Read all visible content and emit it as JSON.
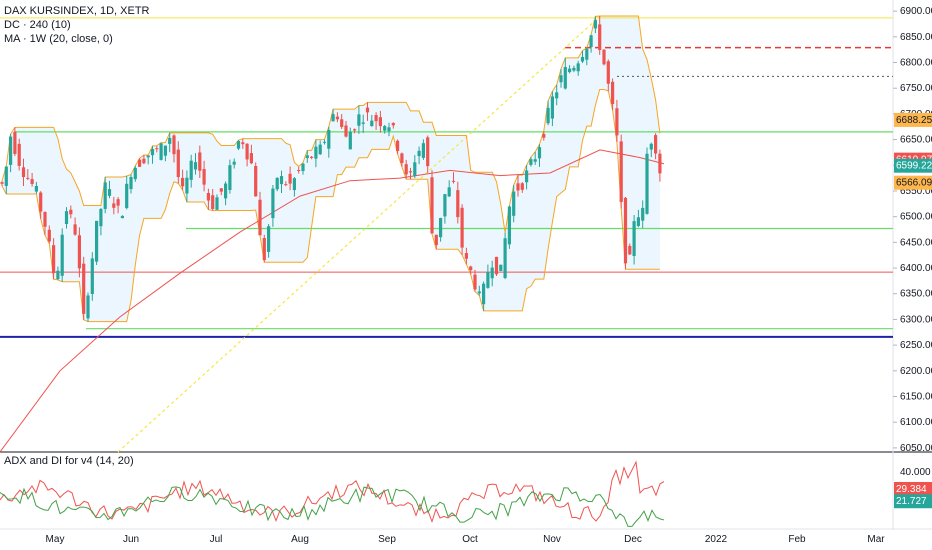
{
  "legend": {
    "symbol": "DAX KURSINDEX, 1D, XETR",
    "indicator1": "DC · 240 (10)",
    "indicator2": "MA · 1W (20, close, 0)",
    "adx_title": "ADX and DI for v4 (14, 20)"
  },
  "price_badges": {
    "b1": {
      "value": "6688.250",
      "bg": "#ffb74d",
      "fg": "#131722"
    },
    "b2": {
      "value": "6610.971",
      "bg": "#ef5350",
      "fg": "#ffffff"
    },
    "b3": {
      "value": "6599.220",
      "bg": "#26a69a",
      "fg": "#ffffff"
    },
    "b4": {
      "value": "6566.090",
      "bg": "#ffb74d",
      "fg": "#131722"
    }
  },
  "adx_badges": {
    "b1": {
      "value": "29.384",
      "bg": "#ef5350",
      "fg": "#ffffff"
    },
    "b2": {
      "value": "21.727",
      "bg": "#26a69a",
      "fg": "#ffffff"
    }
  },
  "colors": {
    "up": "#26a69a",
    "down": "#ef5350",
    "channel": "#f5a623",
    "channel_fill": "#e3f2fd",
    "ma": "#ef5350",
    "green_line": "#4caf50",
    "blue_line": "#1e22aa",
    "yellow_line": "#f5e642",
    "dashed_red": "#e53935"
  },
  "chart_data": {
    "type": "candlestick",
    "price_axis": {
      "ticks": [
        "6900.000",
        "6850.000",
        "6800.000",
        "6750.000",
        "6700.000",
        "6650.000",
        "6600.000",
        "6550.000",
        "6500.000",
        "6450.000",
        "6400.000",
        "6350.000",
        "6300.000",
        "6250.000",
        "6200.000",
        "6150.000",
        "6100.000",
        "6050.000"
      ],
      "range": [
        6042,
        6910
      ]
    },
    "time_axis": {
      "labels": [
        "May",
        "Jun",
        "Jul",
        "Aug",
        "Sep",
        "Oct",
        "Nov",
        "Dec",
        "2022",
        "Feb",
        "Mar"
      ]
    },
    "horizontal_levels": [
      {
        "name": "yellow-top",
        "value": 6887,
        "color": "yellow"
      },
      {
        "name": "red-dashed",
        "value": 6829,
        "color": "red-dashed"
      },
      {
        "name": "black-dotted",
        "value": 6773,
        "color": "black-dotted"
      },
      {
        "name": "green-upper",
        "value": 6665,
        "color": "green"
      },
      {
        "name": "green-middle",
        "value": 6477,
        "color": "green"
      },
      {
        "name": "red-support",
        "value": 6392,
        "color": "red"
      },
      {
        "name": "green-lower",
        "value": 6282,
        "color": "green"
      },
      {
        "name": "blue-bottom",
        "value": 6266,
        "color": "blue"
      }
    ],
    "adx_axis": {
      "ticks": [
        "40.000"
      ],
      "range": [
        5,
        50
      ]
    }
  }
}
